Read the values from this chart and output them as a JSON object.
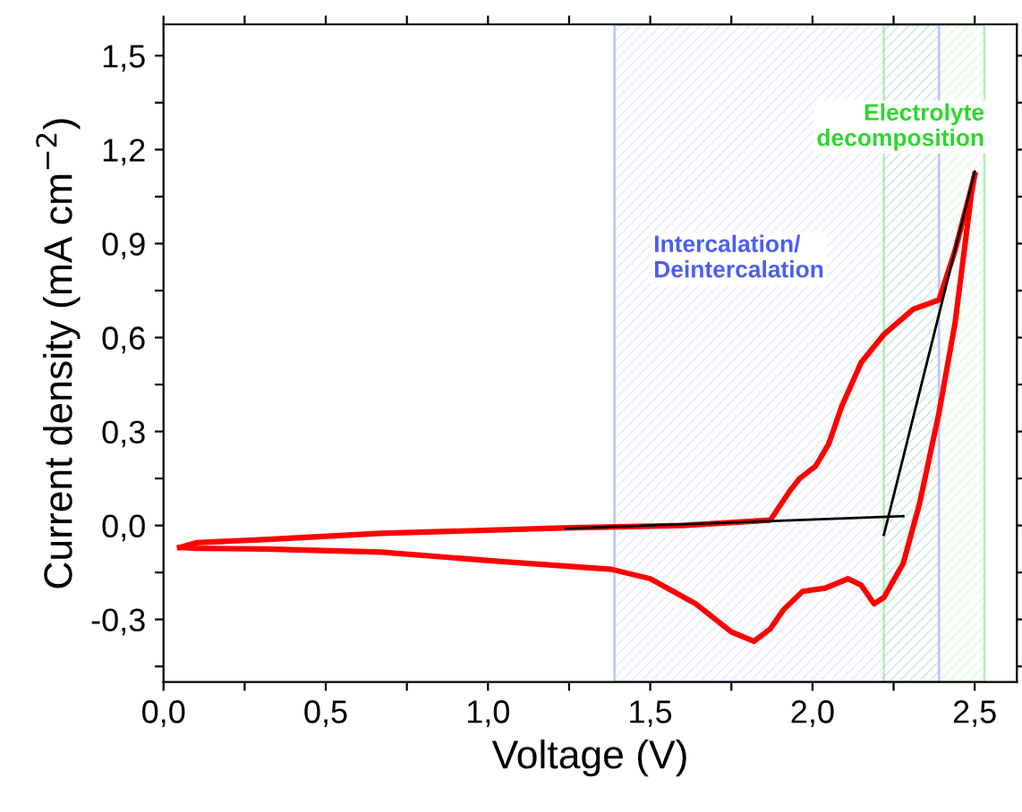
{
  "chart_data": {
    "type": "line",
    "xlabel": "Voltage (V)",
    "ylabel": "Current density (mA cm$^{−2}$)",
    "xlim": [
      0,
      2.63
    ],
    "ylim": [
      -0.5,
      1.6
    ],
    "xticks": [
      {
        "value": 0,
        "label": "0,0"
      },
      {
        "value": 0.25,
        "label": null
      },
      {
        "value": 0.5,
        "label": "0,5"
      },
      {
        "value": 0.75,
        "label": null
      },
      {
        "value": 1.0,
        "label": "1,0"
      },
      {
        "value": 1.25,
        "label": null
      },
      {
        "value": 1.5,
        "label": "1,5"
      },
      {
        "value": 1.75,
        "label": null
      },
      {
        "value": 2.0,
        "label": "2,0"
      },
      {
        "value": 2.25,
        "label": null
      },
      {
        "value": 2.5,
        "label": "2,5"
      }
    ],
    "yticks": [
      {
        "value": -0.45,
        "label": null
      },
      {
        "value": -0.3,
        "label": "-0,3"
      },
      {
        "value": -0.15,
        "label": null
      },
      {
        "value": 0,
        "label": "0,0"
      },
      {
        "value": 0.15,
        "label": null
      },
      {
        "value": 0.3,
        "label": "0,3"
      },
      {
        "value": 0.45,
        "label": null
      },
      {
        "value": 0.6,
        "label": "0,6"
      },
      {
        "value": 0.75,
        "label": null
      },
      {
        "value": 0.9,
        "label": "0,9"
      },
      {
        "value": 1.05,
        "label": null
      },
      {
        "value": 1.2,
        "label": "1,2"
      },
      {
        "value": 1.35,
        "label": null
      },
      {
        "value": 1.5,
        "label": "1,5"
      }
    ],
    "grid": false,
    "legend": false,
    "bands": [
      {
        "axis": "x",
        "from": 1.39,
        "to": 2.39,
        "label": "Intercalation/\nDeintercalation",
        "color": "#4a5ff0"
      },
      {
        "axis": "x",
        "from": 2.22,
        "to": 2.53,
        "label": "Electrolyte\ndecomposition",
        "color": "#2ed62e"
      }
    ],
    "series": [
      {
        "color": "#ff0000",
        "x": [
          0.05,
          0.1,
          0.31,
          0.67,
          1.23,
          1.6,
          1.87,
          1.93,
          1.96,
          2.01,
          2.05,
          2.09,
          2.15,
          2.22,
          2.31,
          2.39,
          2.44,
          2.5
        ],
        "values": [
          -0.07,
          -0.055,
          -0.045,
          -0.025,
          -0.008,
          0.0,
          0.017,
          0.11,
          0.15,
          0.19,
          0.26,
          0.38,
          0.52,
          0.61,
          0.69,
          0.72,
          0.88,
          1.12
        ]
      },
      {
        "color": "#ff0000",
        "x": [
          2.5,
          2.49,
          2.44,
          2.39,
          2.33,
          2.28,
          2.22,
          2.19,
          2.15,
          2.11,
          2.04,
          1.97,
          1.91,
          1.87,
          1.82,
          1.75,
          1.64,
          1.5,
          1.38,
          1.04,
          0.67,
          0.31,
          0.1,
          0.05
        ],
        "values": [
          1.12,
          1.06,
          0.65,
          0.36,
          0.07,
          -0.12,
          -0.23,
          -0.25,
          -0.19,
          -0.17,
          -0.2,
          -0.21,
          -0.27,
          -0.33,
          -0.37,
          -0.34,
          -0.25,
          -0.17,
          -0.14,
          -0.115,
          -0.085,
          -0.075,
          -0.073,
          -0.07
        ]
      },
      {
        "color": "#000000",
        "x": [
          1.24,
          2.28
        ],
        "values": [
          -0.01,
          0.03
        ]
      },
      {
        "color": "#000000",
        "x": [
          2.22,
          2.5
        ],
        "values": [
          -0.03,
          1.13
        ]
      }
    ]
  }
}
